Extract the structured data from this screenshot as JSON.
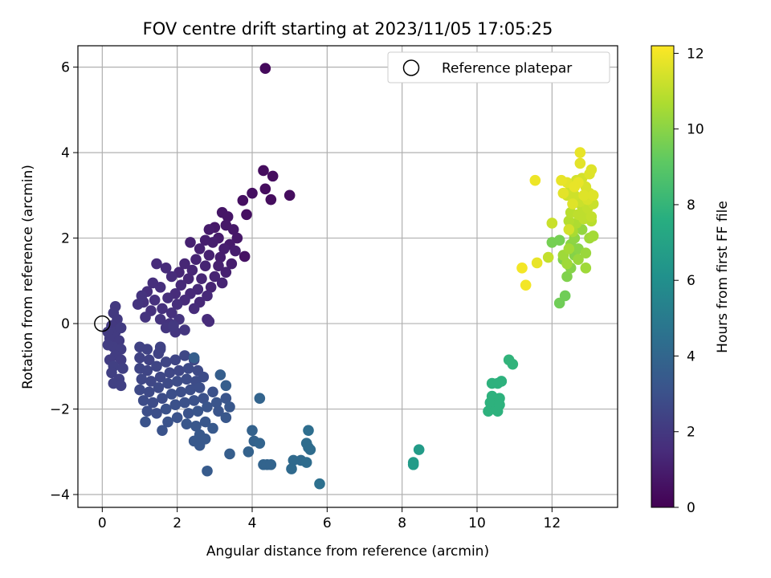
{
  "chart_data": {
    "type": "scatter",
    "title": "FOV centre drift starting at 2023/11/05 17:05:25",
    "xlabel": "Angular distance from reference (arcmin)",
    "ylabel": "Rotation from reference (arcmin)",
    "xlim": [
      -0.65,
      13.75
    ],
    "ylim": [
      -4.3,
      6.5
    ],
    "xticks": [
      0,
      2,
      4,
      6,
      8,
      10,
      12
    ],
    "yticks": [
      -4,
      -2,
      0,
      2,
      4,
      6
    ],
    "grid": true,
    "legend": {
      "position": "top-right",
      "entries": [
        "Reference platepar"
      ]
    },
    "reference_point": {
      "x": 0,
      "y": 0
    },
    "colorbar": {
      "label": "Hours from first FF file",
      "range": [
        0,
        12.2
      ],
      "ticks": [
        0,
        2,
        4,
        6,
        8,
        10,
        12
      ],
      "colormap": "viridis"
    },
    "points": [
      [
        4.35,
        5.97,
        0.3
      ],
      [
        4.3,
        3.58,
        0.4
      ],
      [
        4.55,
        3.45,
        0.4
      ],
      [
        4.35,
        3.15,
        0.4
      ],
      [
        4.0,
        3.05,
        0.5
      ],
      [
        3.75,
        2.88,
        0.5
      ],
      [
        4.5,
        2.9,
        0.4
      ],
      [
        5.0,
        3.0,
        0.4
      ],
      [
        3.85,
        2.55,
        0.5
      ],
      [
        3.8,
        1.57,
        0.6
      ],
      [
        3.2,
        2.6,
        0.7
      ],
      [
        3.35,
        2.5,
        0.7
      ],
      [
        3.5,
        2.2,
        0.8
      ],
      [
        3.6,
        2.0,
        0.8
      ],
      [
        3.3,
        2.3,
        0.8
      ],
      [
        3.0,
        2.25,
        0.8
      ],
      [
        2.85,
        2.2,
        0.9
      ],
      [
        3.1,
        2.0,
        0.9
      ],
      [
        3.4,
        1.85,
        0.9
      ],
      [
        3.55,
        1.7,
        1.0
      ],
      [
        3.25,
        1.75,
        1.0
      ],
      [
        2.95,
        1.9,
        1.0
      ],
      [
        2.75,
        1.95,
        1.0
      ],
      [
        3.15,
        1.55,
        1.0
      ],
      [
        3.45,
        1.4,
        1.0
      ],
      [
        3.3,
        1.2,
        1.1
      ],
      [
        3.1,
        1.35,
        1.1
      ],
      [
        2.85,
        1.6,
        1.1
      ],
      [
        2.6,
        1.75,
        1.1
      ],
      [
        2.35,
        1.9,
        1.1
      ],
      [
        2.5,
        1.5,
        1.2
      ],
      [
        2.75,
        1.35,
        1.2
      ],
      [
        3.0,
        1.1,
        1.2
      ],
      [
        3.2,
        0.95,
        1.2
      ],
      [
        2.9,
        0.85,
        1.2
      ],
      [
        2.65,
        1.05,
        1.3
      ],
      [
        2.4,
        1.25,
        1.3
      ],
      [
        2.2,
        1.4,
        1.3
      ],
      [
        2.05,
        1.2,
        1.3
      ],
      [
        2.3,
        1.05,
        1.3
      ],
      [
        2.55,
        0.8,
        1.4
      ],
      [
        2.8,
        0.65,
        1.4
      ],
      [
        2.6,
        0.5,
        1.4
      ],
      [
        2.35,
        0.7,
        1.4
      ],
      [
        2.1,
        0.9,
        1.4
      ],
      [
        1.85,
        1.1,
        1.5
      ],
      [
        1.7,
        1.3,
        1.5
      ],
      [
        1.45,
        1.4,
        1.5
      ],
      [
        1.95,
        0.7,
        1.5
      ],
      [
        2.2,
        0.55,
        1.5
      ],
      [
        2.45,
        0.35,
        1.5
      ],
      [
        2.0,
        0.45,
        1.6
      ],
      [
        1.75,
        0.6,
        1.6
      ],
      [
        1.55,
        0.85,
        1.6
      ],
      [
        1.35,
        0.95,
        1.6
      ],
      [
        1.2,
        0.75,
        1.6
      ],
      [
        1.4,
        0.55,
        1.7
      ],
      [
        1.6,
        0.35,
        1.7
      ],
      [
        1.85,
        0.25,
        1.7
      ],
      [
        1.1,
        0.5,
        1.7
      ],
      [
        1.3,
        0.3,
        1.7
      ],
      [
        1.55,
        0.1,
        1.8
      ],
      [
        1.8,
        0.0,
        1.8
      ],
      [
        2.05,
        0.1,
        1.8
      ],
      [
        1.15,
        0.15,
        1.8
      ],
      [
        0.95,
        0.45,
        1.8
      ],
      [
        1.05,
        0.65,
        1.8
      ],
      [
        1.7,
        -0.1,
        1.9
      ],
      [
        1.95,
        -0.2,
        1.9
      ],
      [
        2.2,
        -0.15,
        1.9
      ],
      [
        2.85,
        0.05,
        1.5
      ],
      [
        2.8,
        0.1,
        1.5
      ],
      [
        0.35,
        0.4,
        2.0
      ],
      [
        0.3,
        0.25,
        2.0
      ],
      [
        0.4,
        0.1,
        2.0
      ],
      [
        0.25,
        -0.05,
        2.0
      ],
      [
        0.35,
        -0.2,
        2.1
      ],
      [
        0.5,
        -0.1,
        2.1
      ],
      [
        0.2,
        -0.35,
        2.1
      ],
      [
        0.45,
        -0.4,
        2.1
      ],
      [
        0.3,
        -0.55,
        2.2
      ],
      [
        0.5,
        -0.6,
        2.2
      ],
      [
        0.35,
        -0.75,
        2.2
      ],
      [
        0.2,
        -0.85,
        2.2
      ],
      [
        0.5,
        -0.85,
        2.2
      ],
      [
        0.3,
        -1.0,
        2.3
      ],
      [
        0.55,
        -1.05,
        2.3
      ],
      [
        0.25,
        -1.15,
        2.3
      ],
      [
        0.45,
        -1.3,
        2.3
      ],
      [
        0.3,
        -1.4,
        2.3
      ],
      [
        0.5,
        -1.45,
        2.3
      ],
      [
        0.15,
        -0.5,
        2.2
      ],
      [
        0.15,
        -0.2,
        2.1
      ],
      [
        1.0,
        -0.55,
        2.4
      ],
      [
        1.2,
        -0.6,
        2.4
      ],
      [
        1.0,
        -0.8,
        2.4
      ],
      [
        1.25,
        -0.85,
        2.4
      ],
      [
        1.5,
        -0.7,
        2.4
      ],
      [
        1.0,
        -1.05,
        2.5
      ],
      [
        1.2,
        -1.1,
        2.5
      ],
      [
        1.45,
        -1.0,
        2.5
      ],
      [
        1.7,
        -0.9,
        2.5
      ],
      [
        1.95,
        -0.85,
        2.5
      ],
      [
        2.2,
        -0.75,
        2.6
      ],
      [
        2.45,
        -0.85,
        2.6
      ],
      [
        1.05,
        -1.3,
        2.6
      ],
      [
        1.3,
        -1.35,
        2.6
      ],
      [
        1.55,
        -1.25,
        2.6
      ],
      [
        1.8,
        -1.15,
        2.6
      ],
      [
        2.05,
        -1.1,
        2.6
      ],
      [
        2.3,
        -1.05,
        2.7
      ],
      [
        2.55,
        -1.1,
        2.7
      ],
      [
        1.0,
        -1.55,
        2.7
      ],
      [
        1.25,
        -1.6,
        2.7
      ],
      [
        1.5,
        -1.5,
        2.7
      ],
      [
        1.75,
        -1.4,
        2.7
      ],
      [
        2.0,
        -1.35,
        2.8
      ],
      [
        2.25,
        -1.3,
        2.8
      ],
      [
        2.5,
        -1.35,
        2.8
      ],
      [
        2.7,
        -1.25,
        2.8
      ],
      [
        1.1,
        -1.8,
        2.8
      ],
      [
        1.35,
        -1.85,
        2.8
      ],
      [
        1.6,
        -1.75,
        2.8
      ],
      [
        1.85,
        -1.65,
        2.9
      ],
      [
        2.1,
        -1.6,
        2.9
      ],
      [
        2.35,
        -1.55,
        2.9
      ],
      [
        2.6,
        -1.5,
        2.9
      ],
      [
        1.2,
        -2.05,
        2.9
      ],
      [
        1.45,
        -2.1,
        2.9
      ],
      [
        1.7,
        -2.0,
        3.0
      ],
      [
        1.95,
        -1.9,
        3.0
      ],
      [
        2.2,
        -1.85,
        3.0
      ],
      [
        2.45,
        -1.8,
        3.0
      ],
      [
        2.7,
        -1.75,
        3.0
      ],
      [
        2.95,
        -1.6,
        3.0
      ],
      [
        1.15,
        -2.3,
        3.1
      ],
      [
        1.75,
        -2.3,
        3.1
      ],
      [
        1.6,
        -2.5,
        3.1
      ],
      [
        2.0,
        -2.2,
        3.1
      ],
      [
        2.3,
        -2.1,
        3.1
      ],
      [
        2.55,
        -2.05,
        3.2
      ],
      [
        2.8,
        -1.95,
        3.2
      ],
      [
        3.05,
        -1.85,
        3.2
      ],
      [
        3.3,
        -1.75,
        3.2
      ],
      [
        3.1,
        -2.05,
        3.2
      ],
      [
        2.75,
        -2.3,
        3.3
      ],
      [
        2.5,
        -2.4,
        3.3
      ],
      [
        2.25,
        -2.35,
        3.3
      ],
      [
        3.3,
        -2.2,
        3.3
      ],
      [
        3.4,
        -1.95,
        3.3
      ],
      [
        2.95,
        -2.45,
        3.4
      ],
      [
        2.6,
        -2.6,
        3.4
      ],
      [
        2.45,
        -2.75,
        3.4
      ],
      [
        2.75,
        -2.7,
        3.4
      ],
      [
        2.6,
        -2.85,
        3.4
      ],
      [
        1.55,
        -0.6,
        2.4
      ],
      [
        2.45,
        -0.8,
        3.6
      ],
      [
        3.15,
        -1.2,
        3.6
      ],
      [
        3.3,
        -1.45,
        3.6
      ],
      [
        2.8,
        -3.45,
        3.5
      ],
      [
        3.4,
        -3.05,
        3.6
      ],
      [
        4.2,
        -1.75,
        3.9
      ],
      [
        3.9,
        -3.0,
        3.8
      ],
      [
        4.0,
        -2.5,
        3.8
      ],
      [
        4.05,
        -2.75,
        3.8
      ],
      [
        4.2,
        -2.8,
        3.9
      ],
      [
        4.3,
        -3.3,
        3.9
      ],
      [
        4.4,
        -3.3,
        3.9
      ],
      [
        4.5,
        -3.3,
        3.9
      ],
      [
        5.1,
        -3.2,
        4.2
      ],
      [
        5.05,
        -3.4,
        4.2
      ],
      [
        5.3,
        -3.2,
        4.2
      ],
      [
        5.45,
        -3.25,
        4.3
      ],
      [
        5.45,
        -2.8,
        4.3
      ],
      [
        5.5,
        -2.9,
        4.3
      ],
      [
        5.55,
        -2.95,
        4.3
      ],
      [
        5.5,
        -2.5,
        4.4
      ],
      [
        5.8,
        -3.75,
        4.5
      ],
      [
        1.55,
        -0.55,
        2.4
      ],
      [
        1.9,
        -0.05,
        2.0
      ],
      [
        8.3,
        -3.25,
        6.6
      ],
      [
        8.3,
        -3.3,
        6.6
      ],
      [
        8.45,
        -2.95,
        6.6
      ],
      [
        10.3,
        -2.05,
        7.8
      ],
      [
        10.4,
        -1.7,
        7.8
      ],
      [
        10.35,
        -1.85,
        7.8
      ],
      [
        10.5,
        -2.0,
        7.8
      ],
      [
        10.55,
        -2.05,
        7.8
      ],
      [
        10.6,
        -1.75,
        7.8
      ],
      [
        10.6,
        -1.9,
        7.8
      ],
      [
        10.4,
        -1.4,
        7.8
      ],
      [
        10.55,
        -1.4,
        7.8
      ],
      [
        10.65,
        -1.35,
        7.8
      ],
      [
        10.85,
        -0.85,
        7.9
      ],
      [
        10.95,
        -0.95,
        7.9
      ],
      [
        12.2,
        0.48,
        9.5
      ],
      [
        12.35,
        0.65,
        9.5
      ],
      [
        12.0,
        1.9,
        9.6
      ],
      [
        12.2,
        1.95,
        9.6
      ],
      [
        12.3,
        1.5,
        9.8
      ],
      [
        12.4,
        1.1,
        9.8
      ],
      [
        12.5,
        1.3,
        9.9
      ],
      [
        12.6,
        1.6,
        9.9
      ],
      [
        12.7,
        1.75,
        10.0
      ],
      [
        12.5,
        1.85,
        10.0
      ],
      [
        12.6,
        2.0,
        10.1
      ],
      [
        12.8,
        2.2,
        10.2
      ],
      [
        12.9,
        1.65,
        10.3
      ],
      [
        12.7,
        1.5,
        10.3
      ],
      [
        12.9,
        1.3,
        10.4
      ],
      [
        13.0,
        2.0,
        10.4
      ],
      [
        13.1,
        2.05,
        10.5
      ],
      [
        12.4,
        1.4,
        10.4
      ],
      [
        12.3,
        1.6,
        10.4
      ],
      [
        12.45,
        1.75,
        10.5
      ],
      [
        12.55,
        2.15,
        10.6
      ],
      [
        12.65,
        2.35,
        10.7
      ],
      [
        12.45,
        2.4,
        10.8
      ],
      [
        12.5,
        2.6,
        10.9
      ],
      [
        12.7,
        2.55,
        11.0
      ],
      [
        12.85,
        2.45,
        11.0
      ],
      [
        12.95,
        2.7,
        11.1
      ],
      [
        13.05,
        2.5,
        11.1
      ],
      [
        13.1,
        2.8,
        11.2
      ],
      [
        12.75,
        2.85,
        11.2
      ],
      [
        12.6,
        3.0,
        11.3
      ],
      [
        12.5,
        3.15,
        11.3
      ],
      [
        12.4,
        3.0,
        11.3
      ],
      [
        12.65,
        3.35,
        11.4
      ],
      [
        12.8,
        3.4,
        11.4
      ],
      [
        12.9,
        3.2,
        11.5
      ],
      [
        13.0,
        3.05,
        11.5
      ],
      [
        12.95,
        2.9,
        11.5
      ],
      [
        13.0,
        3.5,
        11.6
      ],
      [
        13.05,
        3.6,
        11.6
      ],
      [
        12.75,
        3.75,
        11.7
      ],
      [
        12.75,
        4.0,
        11.8
      ],
      [
        12.4,
        3.3,
        11.7
      ],
      [
        12.3,
        3.05,
        11.7
      ],
      [
        12.55,
        2.8,
        11.6
      ],
      [
        12.85,
        3.0,
        11.6
      ],
      [
        13.1,
        3.0,
        11.6
      ],
      [
        12.45,
        2.2,
        11.4
      ],
      [
        12.25,
        3.35,
        11.8
      ],
      [
        11.55,
        3.35,
        11.9
      ],
      [
        12.0,
        2.35,
        11.2
      ],
      [
        11.9,
        1.55,
        11.1
      ],
      [
        11.6,
        1.42,
        11.8
      ],
      [
        11.3,
        0.9,
        12.0
      ],
      [
        11.2,
        1.3,
        12.0
      ],
      [
        12.7,
        3.3,
        11.8
      ],
      [
        12.6,
        3.2,
        11.8
      ],
      [
        12.9,
        2.6,
        11.0
      ],
      [
        13.05,
        2.4,
        10.9
      ],
      [
        12.8,
        2.75,
        11.0
      ]
    ]
  }
}
